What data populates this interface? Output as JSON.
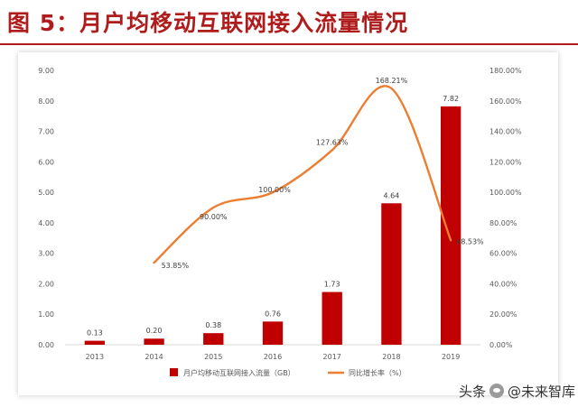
{
  "page": {
    "title": "图 5：月户均移动互联网接入流量情况"
  },
  "watermark": {
    "prefix": "头条",
    "name": "@未来智库",
    "icon": "wechat-icon"
  },
  "colors": {
    "title": "#b01c1c",
    "bar": "#c00000",
    "line": "#ed7d31",
    "axis_text": "#595959",
    "axis_line": "#d9d9d9"
  },
  "chart_data": {
    "type": "bar",
    "categories": [
      "2013",
      "2014",
      "2015",
      "2016",
      "2017",
      "2018",
      "2019"
    ],
    "series": [
      {
        "name": "月户均移动互联网接入流量（GB）",
        "type": "bar",
        "axis": "left",
        "values": [
          0.13,
          0.2,
          0.38,
          0.76,
          1.73,
          4.64,
          7.82
        ],
        "labels": [
          "0.13",
          "0.20",
          "0.38",
          "0.76",
          "1.73",
          "4.64",
          "7.82"
        ]
      },
      {
        "name": "同比增长率（%）",
        "type": "line",
        "axis": "right",
        "values": [
          null,
          53.85,
          90.0,
          100.0,
          127.63,
          168.21,
          68.53
        ],
        "labels": [
          "",
          "53.85%",
          "90.00%",
          "100.00%",
          "127.63%",
          "168.21%",
          "68.53%"
        ]
      }
    ],
    "y_left": {
      "range": [
        0,
        9
      ],
      "ticks": [
        "0.00",
        "1.00",
        "2.00",
        "3.00",
        "4.00",
        "5.00",
        "6.00",
        "7.00",
        "8.00",
        "9.00"
      ]
    },
    "y_right": {
      "range": [
        0,
        180
      ],
      "ticks": [
        "0.00%",
        "20.00%",
        "40.00%",
        "60.00%",
        "80.00%",
        "100.00%",
        "120.00%",
        "140.00%",
        "160.00%",
        "180.00%"
      ]
    },
    "grid": false,
    "legend": "bottom"
  }
}
